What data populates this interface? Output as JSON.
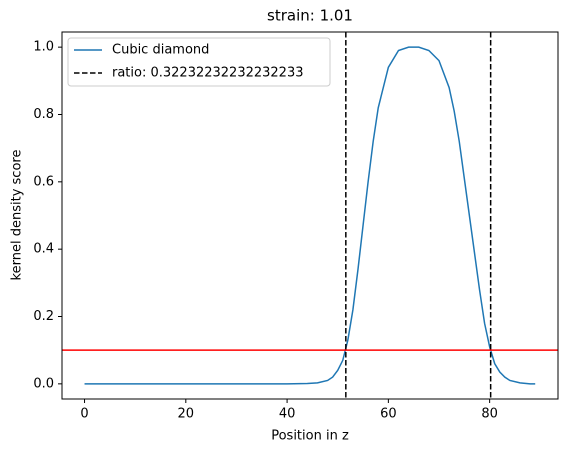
{
  "chart_data": {
    "type": "line",
    "title": "strain: 1.01",
    "x_label": "Position in z",
    "y_label": "kernel density score",
    "x": [
      0,
      10,
      20,
      30,
      40,
      44,
      46,
      48,
      49,
      50,
      51,
      52,
      53,
      54,
      55,
      56,
      57,
      58,
      60,
      62,
      64,
      66,
      68,
      70,
      72,
      73,
      74,
      75,
      76,
      77,
      78,
      79,
      80,
      81,
      82,
      83,
      84,
      86,
      88,
      89
    ],
    "series": [
      {
        "name": "Cubic diamond",
        "color": "#1f77b4",
        "values": [
          0,
          0,
          0,
          0,
          0,
          0.001,
          0.003,
          0.01,
          0.02,
          0.04,
          0.07,
          0.13,
          0.22,
          0.34,
          0.47,
          0.6,
          0.72,
          0.82,
          0.94,
          0.99,
          1.0,
          1.0,
          0.99,
          0.96,
          0.88,
          0.81,
          0.72,
          0.61,
          0.5,
          0.39,
          0.28,
          0.18,
          0.11,
          0.06,
          0.035,
          0.02,
          0.01,
          0.003,
          0,
          0
        ]
      }
    ],
    "vlines": {
      "name": "ratio: 0.32232232232232233",
      "color": "#000000",
      "values": [
        51.6,
        80.2
      ]
    },
    "hline": {
      "value": 0.1,
      "color": "#ff0000"
    },
    "xlim": [
      -4.45,
      93.5
    ],
    "ylim": [
      -0.045,
      1.045
    ],
    "xticks": [
      0,
      20,
      40,
      60,
      80
    ],
    "yticks": [
      {
        "value": 0,
        "label": "0.0"
      },
      {
        "value": 0.2,
        "label": "0.2"
      },
      {
        "value": 0.4,
        "label": "0.4"
      },
      {
        "value": 0.6,
        "label": "0.6"
      },
      {
        "value": 0.8,
        "label": "0.8"
      },
      {
        "value": 1,
        "label": "1.0"
      }
    ],
    "legend": "upper left"
  }
}
